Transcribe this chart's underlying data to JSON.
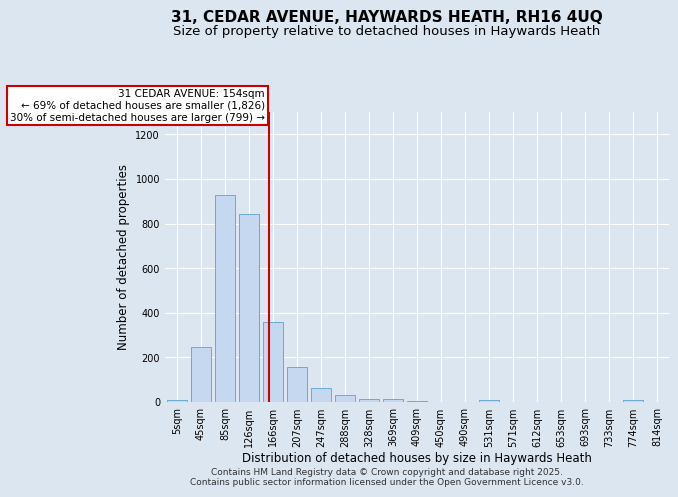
{
  "title": "31, CEDAR AVENUE, HAYWARDS HEATH, RH16 4UQ",
  "subtitle": "Size of property relative to detached houses in Haywards Heath",
  "xlabel": "Distribution of detached houses by size in Haywards Heath",
  "ylabel": "Number of detached properties",
  "categories": [
    "5sqm",
    "45sqm",
    "85sqm",
    "126sqm",
    "166sqm",
    "207sqm",
    "247sqm",
    "288sqm",
    "328sqm",
    "369sqm",
    "409sqm",
    "450sqm",
    "490sqm",
    "531sqm",
    "571sqm",
    "612sqm",
    "653sqm",
    "693sqm",
    "733sqm",
    "774sqm",
    "814sqm"
  ],
  "values": [
    10,
    248,
    930,
    845,
    357,
    155,
    65,
    30,
    15,
    12,
    5,
    0,
    0,
    7,
    0,
    0,
    0,
    0,
    0,
    7,
    0
  ],
  "bar_color": "#c5d8ef",
  "bar_edge_color": "#6aabd2",
  "bar_width": 0.85,
  "ylim": [
    0,
    1300
  ],
  "yticks": [
    0,
    200,
    400,
    600,
    800,
    1000,
    1200
  ],
  "red_line_bin": 3.82,
  "annotation_text": "31 CEDAR AVENUE: 154sqm\n← 69% of detached houses are smaller (1,826)\n30% of semi-detached houses are larger (799) →",
  "annotation_box_facecolor": "#ffffff",
  "annotation_box_edgecolor": "#cc0000",
  "red_line_color": "#cc0000",
  "background_color": "#dce6f1",
  "grid_color": "#ffffff",
  "footer_line1": "Contains HM Land Registry data © Crown copyright and database right 2025.",
  "footer_line2": "Contains public sector information licensed under the Open Government Licence v3.0.",
  "title_fontsize": 11,
  "subtitle_fontsize": 9.5,
  "tick_fontsize": 7,
  "xlabel_fontsize": 8.5,
  "ylabel_fontsize": 8.5,
  "annotation_fontsize": 7.5,
  "footer_fontsize": 6.5
}
